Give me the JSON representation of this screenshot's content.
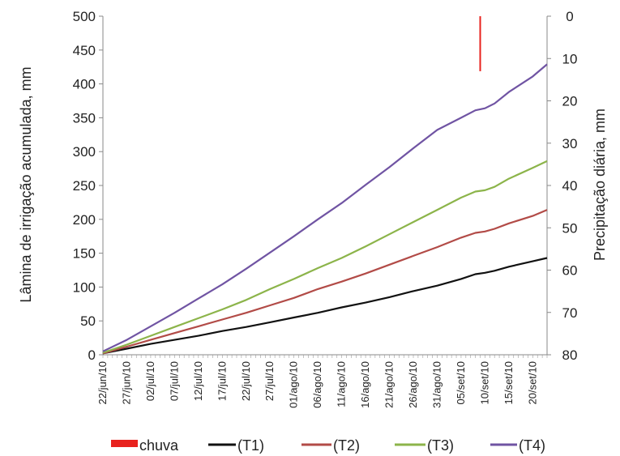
{
  "chart_data": {
    "type": "line",
    "ylabel": "Lâmina de irrigação acumulada, mm",
    "y2label": "Precipitação diária, mm",
    "ylim": [
      0,
      500
    ],
    "y2lim": [
      0,
      80
    ],
    "y2_inverted": true,
    "yticks": [
      "0",
      "50",
      "100",
      "150",
      "200",
      "250",
      "300",
      "350",
      "400",
      "450",
      "500"
    ],
    "y2ticks": [
      "0",
      "10",
      "20",
      "30",
      "40",
      "50",
      "60",
      "70",
      "80"
    ],
    "x_start": "2010-06-22",
    "x_end": "2010-09-23",
    "x_ticks": [
      {
        "date": "2010-06-22",
        "label": "22/jun/10"
      },
      {
        "date": "2010-06-27",
        "label": "27/jun/10"
      },
      {
        "date": "2010-07-02",
        "label": "02/jul/10"
      },
      {
        "date": "2010-07-07",
        "label": "07/jul/10"
      },
      {
        "date": "2010-07-12",
        "label": "12/jul/10"
      },
      {
        "date": "2010-07-17",
        "label": "17/jul/10"
      },
      {
        "date": "2010-07-22",
        "label": "22/jul/10"
      },
      {
        "date": "2010-07-27",
        "label": "27/jul/10"
      },
      {
        "date": "2010-08-01",
        "label": "01/ago/10"
      },
      {
        "date": "2010-08-06",
        "label": "06/ago/10"
      },
      {
        "date": "2010-08-11",
        "label": "11/ago/10"
      },
      {
        "date": "2010-08-16",
        "label": "16/ago/10"
      },
      {
        "date": "2010-08-21",
        "label": "21/ago/10"
      },
      {
        "date": "2010-08-26",
        "label": "26/ago/10"
      },
      {
        "date": "2010-08-31",
        "label": "31/ago/10"
      },
      {
        "date": "2010-09-05",
        "label": "05/set/10"
      },
      {
        "date": "2010-09-10",
        "label": "10/set/10"
      },
      {
        "date": "2010-09-15",
        "label": "15/set/10"
      },
      {
        "date": "2010-09-20",
        "label": "20/set/10"
      }
    ],
    "series": [
      {
        "name": "chuva",
        "kind": "bar",
        "axis": "right",
        "color": "#e8221e",
        "x": [
          "2010-09-09"
        ],
        "values": [
          13
        ]
      },
      {
        "name": "(T1)",
        "kind": "line",
        "axis": "left",
        "color": "#111111",
        "x": [
          "2010-06-22",
          "2010-06-27",
          "2010-07-02",
          "2010-07-07",
          "2010-07-12",
          "2010-07-17",
          "2010-07-22",
          "2010-07-27",
          "2010-08-01",
          "2010-08-06",
          "2010-08-11",
          "2010-08-16",
          "2010-08-21",
          "2010-08-26",
          "2010-08-31",
          "2010-09-05",
          "2010-09-08",
          "2010-09-10",
          "2010-09-12",
          "2010-09-15",
          "2010-09-20",
          "2010-09-23"
        ],
        "values": [
          2,
          9,
          16,
          22,
          28,
          35,
          41,
          48,
          55,
          62,
          70,
          77,
          85,
          94,
          102,
          112,
          119,
          121,
          124,
          130,
          138,
          143
        ]
      },
      {
        "name": "(T2)",
        "kind": "line",
        "axis": "left",
        "color": "#b24b47",
        "x": [
          "2010-06-22",
          "2010-06-27",
          "2010-07-02",
          "2010-07-07",
          "2010-07-12",
          "2010-07-17",
          "2010-07-22",
          "2010-07-27",
          "2010-08-01",
          "2010-08-06",
          "2010-08-11",
          "2010-08-16",
          "2010-08-21",
          "2010-08-26",
          "2010-08-31",
          "2010-09-05",
          "2010-09-08",
          "2010-09-10",
          "2010-09-12",
          "2010-09-15",
          "2010-09-20",
          "2010-09-23"
        ],
        "values": [
          2,
          12,
          22,
          32,
          42,
          52,
          62,
          73,
          84,
          97,
          108,
          120,
          133,
          146,
          159,
          173,
          180,
          182,
          186,
          194,
          205,
          214
        ]
      },
      {
        "name": "(T3)",
        "kind": "line",
        "axis": "left",
        "color": "#8cb44a",
        "x": [
          "2010-06-22",
          "2010-06-27",
          "2010-07-02",
          "2010-07-07",
          "2010-07-12",
          "2010-07-17",
          "2010-07-22",
          "2010-07-27",
          "2010-08-01",
          "2010-08-06",
          "2010-08-11",
          "2010-08-16",
          "2010-08-21",
          "2010-08-26",
          "2010-08-31",
          "2010-09-05",
          "2010-09-08",
          "2010-09-10",
          "2010-09-12",
          "2010-09-15",
          "2010-09-20",
          "2010-09-23"
        ],
        "values": [
          3,
          15,
          28,
          41,
          54,
          67,
          81,
          97,
          112,
          128,
          143,
          160,
          178,
          196,
          214,
          232,
          241,
          243,
          248,
          260,
          276,
          286
        ]
      },
      {
        "name": "(T4)",
        "kind": "line",
        "axis": "left",
        "color": "#7054a3",
        "x": [
          "2010-06-22",
          "2010-06-27",
          "2010-07-02",
          "2010-07-07",
          "2010-07-12",
          "2010-07-17",
          "2010-07-22",
          "2010-07-27",
          "2010-08-01",
          "2010-08-06",
          "2010-08-11",
          "2010-08-16",
          "2010-08-21",
          "2010-08-26",
          "2010-08-31",
          "2010-09-05",
          "2010-09-08",
          "2010-09-10",
          "2010-09-12",
          "2010-09-15",
          "2010-09-20",
          "2010-09-23"
        ],
        "values": [
          5,
          22,
          42,
          62,
          83,
          104,
          127,
          151,
          175,
          200,
          224,
          251,
          277,
          305,
          332,
          350,
          361,
          364,
          371,
          388,
          411,
          429
        ]
      }
    ],
    "legend_position": "bottom",
    "grid": false
  }
}
